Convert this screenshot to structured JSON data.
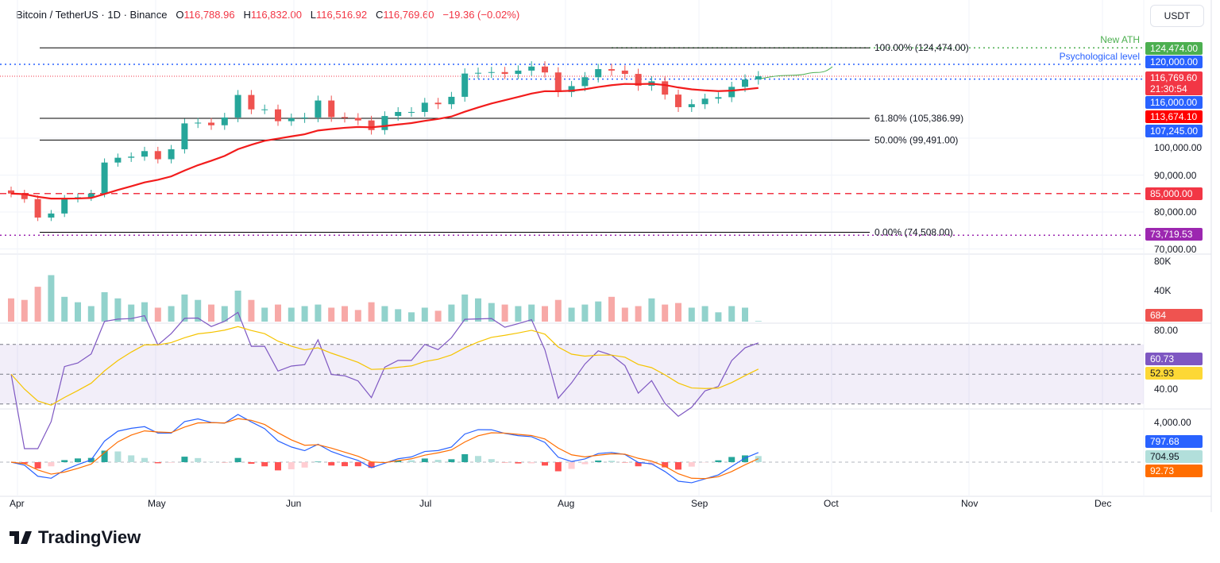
{
  "header": {
    "symbol": "Bitcoin / TetherUS · 1D · Binance",
    "open_label": "O",
    "open": "116,788.96",
    "high_label": "H",
    "high": "116,832.00",
    "low_label": "L",
    "low": "116,516.92",
    "close_label": "C",
    "close": "116,769.60",
    "change": "−19.36 (−0.02%)"
  },
  "currency_button": "USDT",
  "logo": {
    "text": "TradingView"
  },
  "colors": {
    "up": "#26a69a",
    "down": "#ef5350",
    "ema": "#f21c1c",
    "rsi": "#7e57c2",
    "rsi_ma": "#fdd835",
    "macd": "#2962ff",
    "signal": "#ff6d00",
    "fib": "#000000",
    "level_blue": "#2962ff",
    "ath_green": "#4caf50"
  },
  "annotations": {
    "ath": "New ATH",
    "psych": "Psychological level"
  },
  "chart_data": [
    {
      "type": "candlestick",
      "title": "",
      "step_days": 3,
      "dates": [
        "Apr 1",
        "Apr 4",
        "Apr 7",
        "Apr 10",
        "Apr 13",
        "Apr 16",
        "Apr 19",
        "Apr 22",
        "Apr 25",
        "Apr 28",
        "May 1",
        "May 4",
        "May 7",
        "May 10",
        "May 13",
        "May 16",
        "May 19",
        "May 22",
        "May 25",
        "May 28",
        "May 31",
        "Jun 3",
        "Jun 6",
        "Jun 9",
        "Jun 12",
        "Jun 15",
        "Jun 18",
        "Jun 21",
        "Jun 24",
        "Jun 27",
        "Jun 30",
        "Jul 3",
        "Jul 6",
        "Jul 9",
        "Jul 12",
        "Jul 15",
        "Jul 18",
        "Jul 21",
        "Jul 24",
        "Jul 27",
        "Jul 30",
        "Aug 2",
        "Aug 5",
        "Aug 8",
        "Aug 11",
        "Aug 14",
        "Aug 17",
        "Aug 20",
        "Aug 23",
        "Aug 26",
        "Aug 29",
        "Sep 1",
        "Sep 4",
        "Sep 7",
        "Sep 10",
        "Sep 13",
        "Sep 16"
      ],
      "close": [
        85000,
        83500,
        78500,
        79600,
        83600,
        84000,
        85000,
        93400,
        94700,
        95000,
        96500,
        94300,
        97000,
        104000,
        104200,
        103500,
        105600,
        111700,
        107800,
        107800,
        104600,
        105400,
        105600,
        110200,
        105700,
        105500,
        104800,
        102200,
        106000,
        107100,
        107100,
        109600,
        109200,
        111200,
        117500,
        117700,
        117900,
        117400,
        118300,
        119400,
        117800,
        112500,
        114100,
        116500,
        118700,
        118300,
        117400,
        114200,
        115400,
        111800,
        108400,
        109200,
        110700,
        111100,
        113900,
        115900,
        116769.6
      ],
      "volume_k": [
        30,
        28,
        45,
        60,
        32,
        25,
        20,
        38,
        30,
        22,
        25,
        18,
        20,
        35,
        28,
        22,
        20,
        40,
        28,
        18,
        22,
        18,
        20,
        22,
        18,
        20,
        15,
        25,
        20,
        16,
        12,
        18,
        14,
        22,
        35,
        30,
        24,
        22,
        20,
        22,
        20,
        28,
        18,
        22,
        26,
        32,
        18,
        20,
        30,
        22,
        24,
        18,
        20,
        12,
        20,
        18,
        0.684
      ],
      "ylim": [
        70000,
        130000
      ],
      "y_ticks": [
        "70,000.00",
        "80,000.00",
        "90,000.00",
        "100,000.00"
      ],
      "x_ticks": [
        "Apr",
        "May",
        "Jun",
        "Jul",
        "Aug",
        "Sep",
        "Oct",
        "Nov",
        "Dec"
      ],
      "fib_levels": [
        {
          "label": "100.00% (124,474.00)",
          "value": 124474
        },
        {
          "label": "61.80% (105,386.99)",
          "value": 105386.99
        },
        {
          "label": "50.00% (99,491.00)",
          "value": 99491
        },
        {
          "label": "0.00% (74,508.00)",
          "value": 74508
        }
      ],
      "price_labels": [
        {
          "text": "124,474.00",
          "value": 124474,
          "color": "#4caf50"
        },
        {
          "text": "120,000.00",
          "value": 120000,
          "color": "#2962ff"
        },
        {
          "text": "116,769.60",
          "sub": "21:30:54",
          "value": 116769.6,
          "color": "#f23645"
        },
        {
          "text": "116,000.00",
          "value": 116000,
          "color": "#2962ff"
        },
        {
          "text": "113,674.10",
          "value": 113674.1,
          "color": "#ff0000"
        },
        {
          "text": "107,245.00",
          "value": 107245,
          "color": "#2962ff"
        },
        {
          "text": "85,000.00",
          "value": 85000,
          "color": "#f23645"
        },
        {
          "text": "73,719.53",
          "value": 73719.53,
          "color": "#9c27b0"
        }
      ]
    },
    {
      "type": "bar",
      "title": "Volume",
      "y_ticks": [
        "80K",
        "40K"
      ],
      "last_label": "684"
    },
    {
      "type": "line",
      "title": "RSI",
      "y_ticks": [
        "80.00",
        "40.00"
      ],
      "rsi": "60.73",
      "rsi_ma": "52.93"
    },
    {
      "type": "line",
      "title": "MACD",
      "y_ticks": [
        "4,000.00"
      ],
      "macd": "797.68",
      "histogram": "704.95",
      "signal": "92.73"
    }
  ]
}
